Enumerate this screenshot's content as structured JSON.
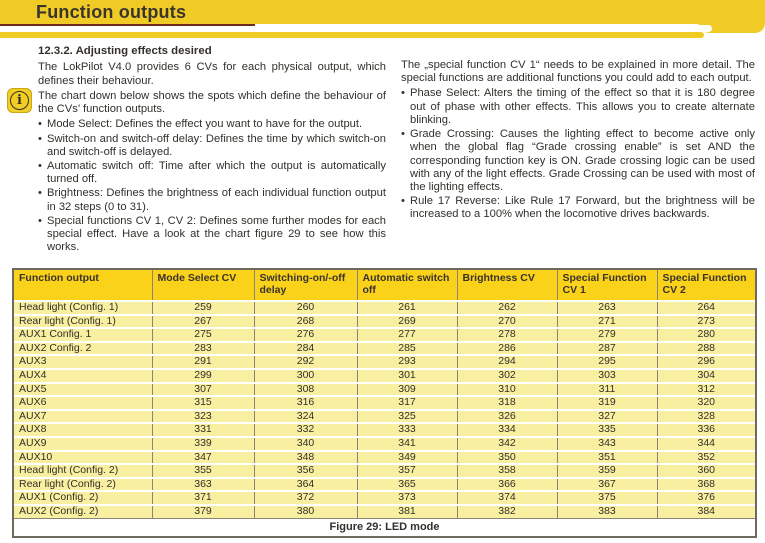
{
  "page": {
    "title": "Function outputs"
  },
  "section": {
    "heading": "12.3.2. Adjusting effects desired",
    "left": {
      "para1": "The LokPilot V4.0 provides 6 CVs for each physical output, which defines their behaviour.",
      "para2": "The chart down below shows the spots which define the behaviour of the CVs’ function outputs.",
      "bullets": [
        "Mode Select: Defines the effect you want to have for the output.",
        "Switch-on and switch-off delay: Defines the time by which switch-on and switch-off is delayed.",
        "Automatic switch off: Time after which the output is automatically turned off.",
        "Brightness: Defines the brightness of each individual function output in 32 steps (0 to 31).",
        "Special functions CV 1, CV 2: Defines some further modes for each special effect. Have a look at the chart figure 29 to see how this works."
      ]
    },
    "right": {
      "para1": "The „special function CV 1“ needs to be explained in more detail. The special functions are additional functions you could add to each output.",
      "bullets": [
        "Phase Select: Alters the timing of the effect so that it is 180 degree out of phase with other effects. This allows you to create alternate blinking.",
        "Grade Crossing: Causes the lighting effect to become active only when the global flag “Grade crossing enable” is set AND the corresponding function key is ON. Grade crossing logic can be used with any of the light effects. Grade Crossing can be used with most of the lighting effects.",
        "Rule 17 Reverse: Like Rule 17 Forward, but the brightness will be increased to a 100% when the locomotive drives backwards."
      ]
    }
  },
  "icons": {
    "info": "info-icon"
  },
  "table": {
    "headers": [
      "Function output",
      "Mode Select CV",
      "Switching-on/-off delay",
      "Automatic switch off",
      "Brightness CV",
      "Special Function CV 1",
      "Special Function CV 2"
    ],
    "rows": [
      {
        "label": "Head light (Config. 1)",
        "values": [
          259,
          260,
          261,
          262,
          263,
          264
        ]
      },
      {
        "label": "Rear light (Config. 1)",
        "values": [
          267,
          268,
          269,
          270,
          271,
          273
        ]
      },
      {
        "label": "AUX1 Config. 1",
        "values": [
          275,
          276,
          277,
          278,
          279,
          280
        ]
      },
      {
        "label": "AUX2 Config. 2",
        "values": [
          283,
          284,
          285,
          286,
          287,
          288
        ]
      },
      {
        "label": "AUX3",
        "values": [
          291,
          292,
          293,
          294,
          295,
          296
        ]
      },
      {
        "label": "AUX4",
        "values": [
          299,
          300,
          301,
          302,
          303,
          304
        ]
      },
      {
        "label": "AUX5",
        "values": [
          307,
          308,
          309,
          310,
          311,
          312
        ]
      },
      {
        "label": "AUX6",
        "values": [
          315,
          316,
          317,
          318,
          319,
          320
        ]
      },
      {
        "label": "AUX7",
        "values": [
          323,
          324,
          325,
          326,
          327,
          328
        ]
      },
      {
        "label": "AUX8",
        "values": [
          331,
          332,
          333,
          334,
          335,
          336
        ]
      },
      {
        "label": "AUX9",
        "values": [
          339,
          340,
          341,
          342,
          343,
          344
        ]
      },
      {
        "label": "AUX10",
        "values": [
          347,
          348,
          349,
          350,
          351,
          352
        ]
      },
      {
        "label": "Head light (Config. 2)",
        "values": [
          355,
          356,
          357,
          358,
          359,
          360
        ]
      },
      {
        "label": "Rear light (Config. 2)",
        "values": [
          363,
          364,
          365,
          366,
          367,
          368
        ]
      },
      {
        "label": "AUX1 (Config. 2)",
        "values": [
          371,
          372,
          373,
          374,
          375,
          376
        ]
      },
      {
        "label": "AUX2 (Config. 2)",
        "values": [
          379,
          380,
          381,
          382,
          383,
          384
        ]
      }
    ],
    "caption": "Figure 29: LED mode"
  },
  "colors": {
    "band_yellow": "#F0CB26",
    "header_yellow": "#FAD219",
    "row_yellow": "#F8EFA0",
    "accent_maroon": "#6F2C1E",
    "text_dark": "#33302B",
    "border_gray": "#6E6A60"
  }
}
